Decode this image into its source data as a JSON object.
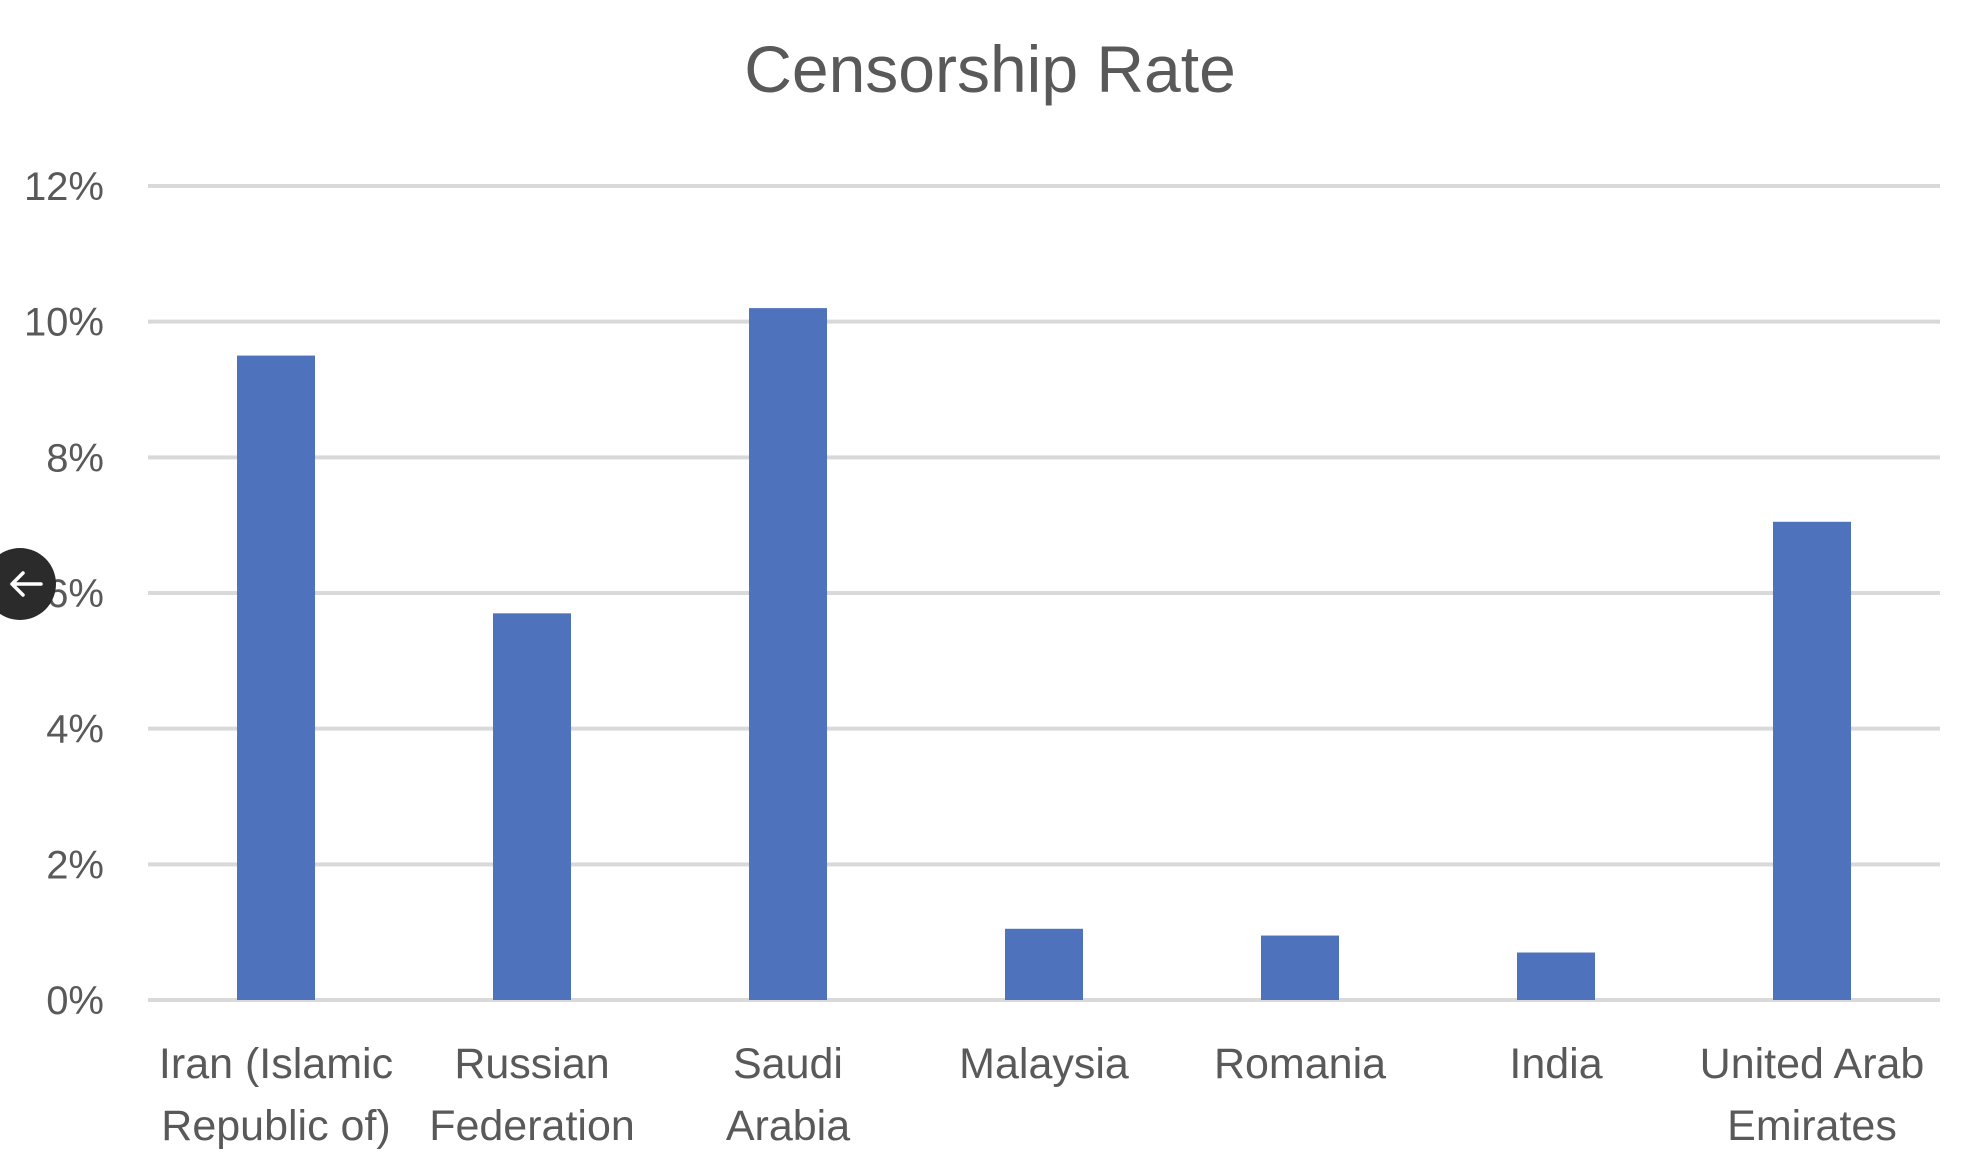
{
  "chart_data": {
    "type": "bar",
    "title": "Censorship Rate",
    "categories": [
      [
        "Iran (Islamic",
        "Republic of)"
      ],
      [
        "Russian",
        "Federation"
      ],
      [
        "Saudi",
        "Arabia"
      ],
      [
        "Malaysia"
      ],
      [
        "Romania"
      ],
      [
        "India"
      ],
      [
        "United Arab",
        "Emirates"
      ]
    ],
    "values": [
      9.5,
      5.7,
      10.2,
      1.05,
      0.95,
      0.7,
      7.05
    ],
    "ylim": [
      0,
      12
    ],
    "yticks": [
      0,
      2,
      4,
      6,
      8,
      10,
      12
    ],
    "ytick_labels": [
      "0%",
      "2%",
      "4%",
      "6%",
      "8%",
      "10%",
      "12%"
    ],
    "grid": true,
    "bar_color": "#4F72BD",
    "grid_color": "#D9D9D9"
  },
  "nav": {
    "back_icon": "arrow-left-icon"
  }
}
